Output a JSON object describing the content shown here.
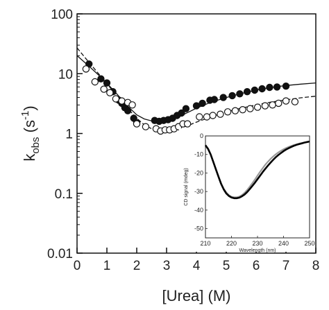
{
  "chart_data": [
    {
      "type": "scatter",
      "xlabel": "[Urea] (M)",
      "ylabel": {
        "main": "k",
        "sub": "obs",
        "unit_open": " (s",
        "sup": "-1",
        "unit_close": ")"
      },
      "xlim": [
        0,
        8
      ],
      "ylim": [
        0.01,
        100
      ],
      "yscale": "log",
      "x_ticks": [
        0,
        1,
        2,
        3,
        4,
        5,
        6,
        7,
        8
      ],
      "y_ticks": [
        {
          "value": 0.01,
          "label": "0.01"
        },
        {
          "value": 0.1,
          "label": "0.1"
        },
        {
          "value": 1,
          "label": "1"
        },
        {
          "value": 10,
          "label": "10"
        },
        {
          "value": 100,
          "label": "100"
        }
      ],
      "grid": false,
      "series": [
        {
          "marker": "filled-circle",
          "color": "#111111",
          "points": [
            [
              0.4,
              14.5
            ],
            [
              0.8,
              8.2
            ],
            [
              1.0,
              7.0
            ],
            [
              1.2,
              5.0
            ],
            [
              1.4,
              3.6
            ],
            [
              1.5,
              3.2
            ],
            [
              1.6,
              2.7
            ],
            [
              1.7,
              2.4
            ],
            [
              1.9,
              1.8
            ],
            [
              2.0,
              1.5
            ],
            [
              2.6,
              1.65
            ],
            [
              2.75,
              1.6
            ],
            [
              2.9,
              1.65
            ],
            [
              3.05,
              1.7
            ],
            [
              3.2,
              1.8
            ],
            [
              3.35,
              2.0
            ],
            [
              3.5,
              2.2
            ],
            [
              3.65,
              2.6
            ],
            [
              4.0,
              2.9
            ],
            [
              4.2,
              3.2
            ],
            [
              4.45,
              3.6
            ],
            [
              4.6,
              3.7
            ],
            [
              4.9,
              4.0
            ],
            [
              5.2,
              4.3
            ],
            [
              5.45,
              4.6
            ],
            [
              5.7,
              5.0
            ],
            [
              5.95,
              5.3
            ],
            [
              6.2,
              5.6
            ],
            [
              6.45,
              5.9
            ],
            [
              6.7,
              6.0
            ],
            [
              7.0,
              6.2
            ]
          ],
          "fit": [
            [
              0,
              20
            ],
            [
              0.25,
              15.5
            ],
            [
              0.5,
              12
            ],
            [
              0.75,
              9.2
            ],
            [
              1.0,
              6.9
            ],
            [
              1.25,
              5.1
            ],
            [
              1.5,
              3.7
            ],
            [
              1.75,
              2.7
            ],
            [
              2.0,
              2.05
            ],
            [
              2.25,
              1.75
            ],
            [
              2.5,
              1.62
            ],
            [
              2.75,
              1.6
            ],
            [
              3.0,
              1.65
            ],
            [
              3.25,
              1.78
            ],
            [
              3.5,
              2.0
            ],
            [
              3.75,
              2.3
            ],
            [
              4.0,
              2.65
            ],
            [
              4.5,
              3.35
            ],
            [
              5.0,
              4.0
            ],
            [
              5.5,
              4.65
            ],
            [
              6.0,
              5.3
            ],
            [
              6.5,
              5.9
            ],
            [
              7.0,
              6.35
            ],
            [
              7.5,
              6.7
            ],
            [
              8.0,
              7.0
            ]
          ]
        },
        {
          "marker": "open-circle",
          "color": "#111111",
          "points": [
            [
              0.3,
              12.0
            ],
            [
              0.6,
              7.3
            ],
            [
              0.9,
              5.5
            ],
            [
              1.1,
              4.8
            ],
            [
              1.3,
              3.8
            ],
            [
              1.5,
              3.5
            ],
            [
              1.7,
              3.3
            ],
            [
              1.85,
              3.0
            ],
            [
              2.0,
              1.45
            ],
            [
              2.3,
              1.3
            ],
            [
              2.65,
              1.2
            ],
            [
              2.8,
              1.1
            ],
            [
              2.95,
              1.15
            ],
            [
              3.1,
              1.15
            ],
            [
              3.25,
              1.2
            ],
            [
              3.4,
              1.3
            ],
            [
              3.55,
              1.45
            ],
            [
              3.7,
              1.45
            ],
            [
              4.1,
              1.9
            ],
            [
              4.35,
              1.9
            ],
            [
              4.55,
              2.0
            ],
            [
              4.8,
              2.1
            ],
            [
              5.05,
              2.3
            ],
            [
              5.3,
              2.4
            ],
            [
              5.55,
              2.5
            ],
            [
              5.8,
              2.6
            ],
            [
              6.05,
              2.75
            ],
            [
              6.3,
              2.9
            ],
            [
              6.55,
              3.0
            ],
            [
              6.75,
              3.2
            ],
            [
              7.0,
              3.5
            ],
            [
              7.3,
              3.4
            ]
          ],
          "fit": [
            [
              0,
              27
            ],
            [
              0.25,
              19
            ],
            [
              0.5,
              13.5
            ],
            [
              0.75,
              9.6
            ],
            [
              1.0,
              6.8
            ],
            [
              1.25,
              4.8
            ],
            [
              1.5,
              3.4
            ],
            [
              1.75,
              2.45
            ],
            [
              2.0,
              1.8
            ],
            [
              2.25,
              1.4
            ],
            [
              2.5,
              1.2
            ],
            [
              2.75,
              1.12
            ],
            [
              3.0,
              1.1
            ],
            [
              3.25,
              1.15
            ],
            [
              3.5,
              1.25
            ],
            [
              3.75,
              1.38
            ],
            [
              4.0,
              1.55
            ],
            [
              4.5,
              1.9
            ],
            [
              5.0,
              2.3
            ],
            [
              5.5,
              2.65
            ],
            [
              6.0,
              3.0
            ],
            [
              6.5,
              3.35
            ],
            [
              7.0,
              3.65
            ],
            [
              7.5,
              3.95
            ],
            [
              8.0,
              4.2
            ]
          ]
        }
      ]
    },
    {
      "type": "line",
      "xlabel": "Wavelength (nm)",
      "ylabel": "CD signal (mdeg)",
      "xlim": [
        210,
        250
      ],
      "ylim": [
        -55,
        0
      ],
      "x_ticks": [
        210,
        220,
        230,
        240,
        250
      ],
      "y_ticks": [
        0,
        -10,
        -20,
        -30,
        -40,
        -50
      ],
      "grid": false,
      "series": [
        {
          "color": "#999999",
          "x": [
            210,
            211,
            212,
            213,
            214,
            215,
            216,
            217,
            218,
            219,
            220,
            221,
            222,
            223,
            224,
            225,
            226,
            227,
            228,
            229,
            230,
            231,
            232,
            233,
            234,
            235,
            236,
            237,
            238,
            239,
            240,
            241,
            242,
            243,
            244,
            245,
            246,
            247,
            248,
            249,
            250
          ],
          "y": [
            -5,
            -7,
            -10,
            -14,
            -18,
            -22,
            -25.5,
            -28.5,
            -30.5,
            -32,
            -32.8,
            -33.1,
            -33.1,
            -32.7,
            -31.9,
            -30.7,
            -29.2,
            -27.4,
            -25.5,
            -23.5,
            -21.4,
            -19.3,
            -17.4,
            -15.5,
            -13.9,
            -12.4,
            -11.1,
            -9.9,
            -8.9,
            -8.0,
            -7.2,
            -6.5,
            -5.9,
            -5.4,
            -4.9,
            -4.5,
            -4.1,
            -3.8,
            -3.5,
            -3.3,
            -3.1
          ]
        },
        {
          "color": "#000000",
          "x": [
            210,
            211,
            212,
            213,
            214,
            215,
            216,
            217,
            218,
            219,
            220,
            221,
            222,
            223,
            224,
            225,
            226,
            227,
            228,
            229,
            230,
            231,
            232,
            233,
            234,
            235,
            236,
            237,
            238,
            239,
            240,
            241,
            242,
            243,
            244,
            245,
            246,
            247,
            248,
            249,
            250
          ],
          "y": [
            -5,
            -7,
            -10,
            -14,
            -18,
            -22,
            -25.8,
            -28.8,
            -31,
            -32.4,
            -33.2,
            -33.6,
            -33.6,
            -33.3,
            -32.6,
            -31.6,
            -30.3,
            -28.7,
            -27,
            -25.2,
            -23.3,
            -21.4,
            -19.5,
            -17.7,
            -16,
            -14.4,
            -12.9,
            -11.5,
            -10.3,
            -9.2,
            -8.2,
            -7.3,
            -6.6,
            -5.9,
            -5.3,
            -4.8,
            -4.4,
            -4.0,
            -3.6,
            -3.3,
            -3.0
          ]
        }
      ]
    }
  ]
}
